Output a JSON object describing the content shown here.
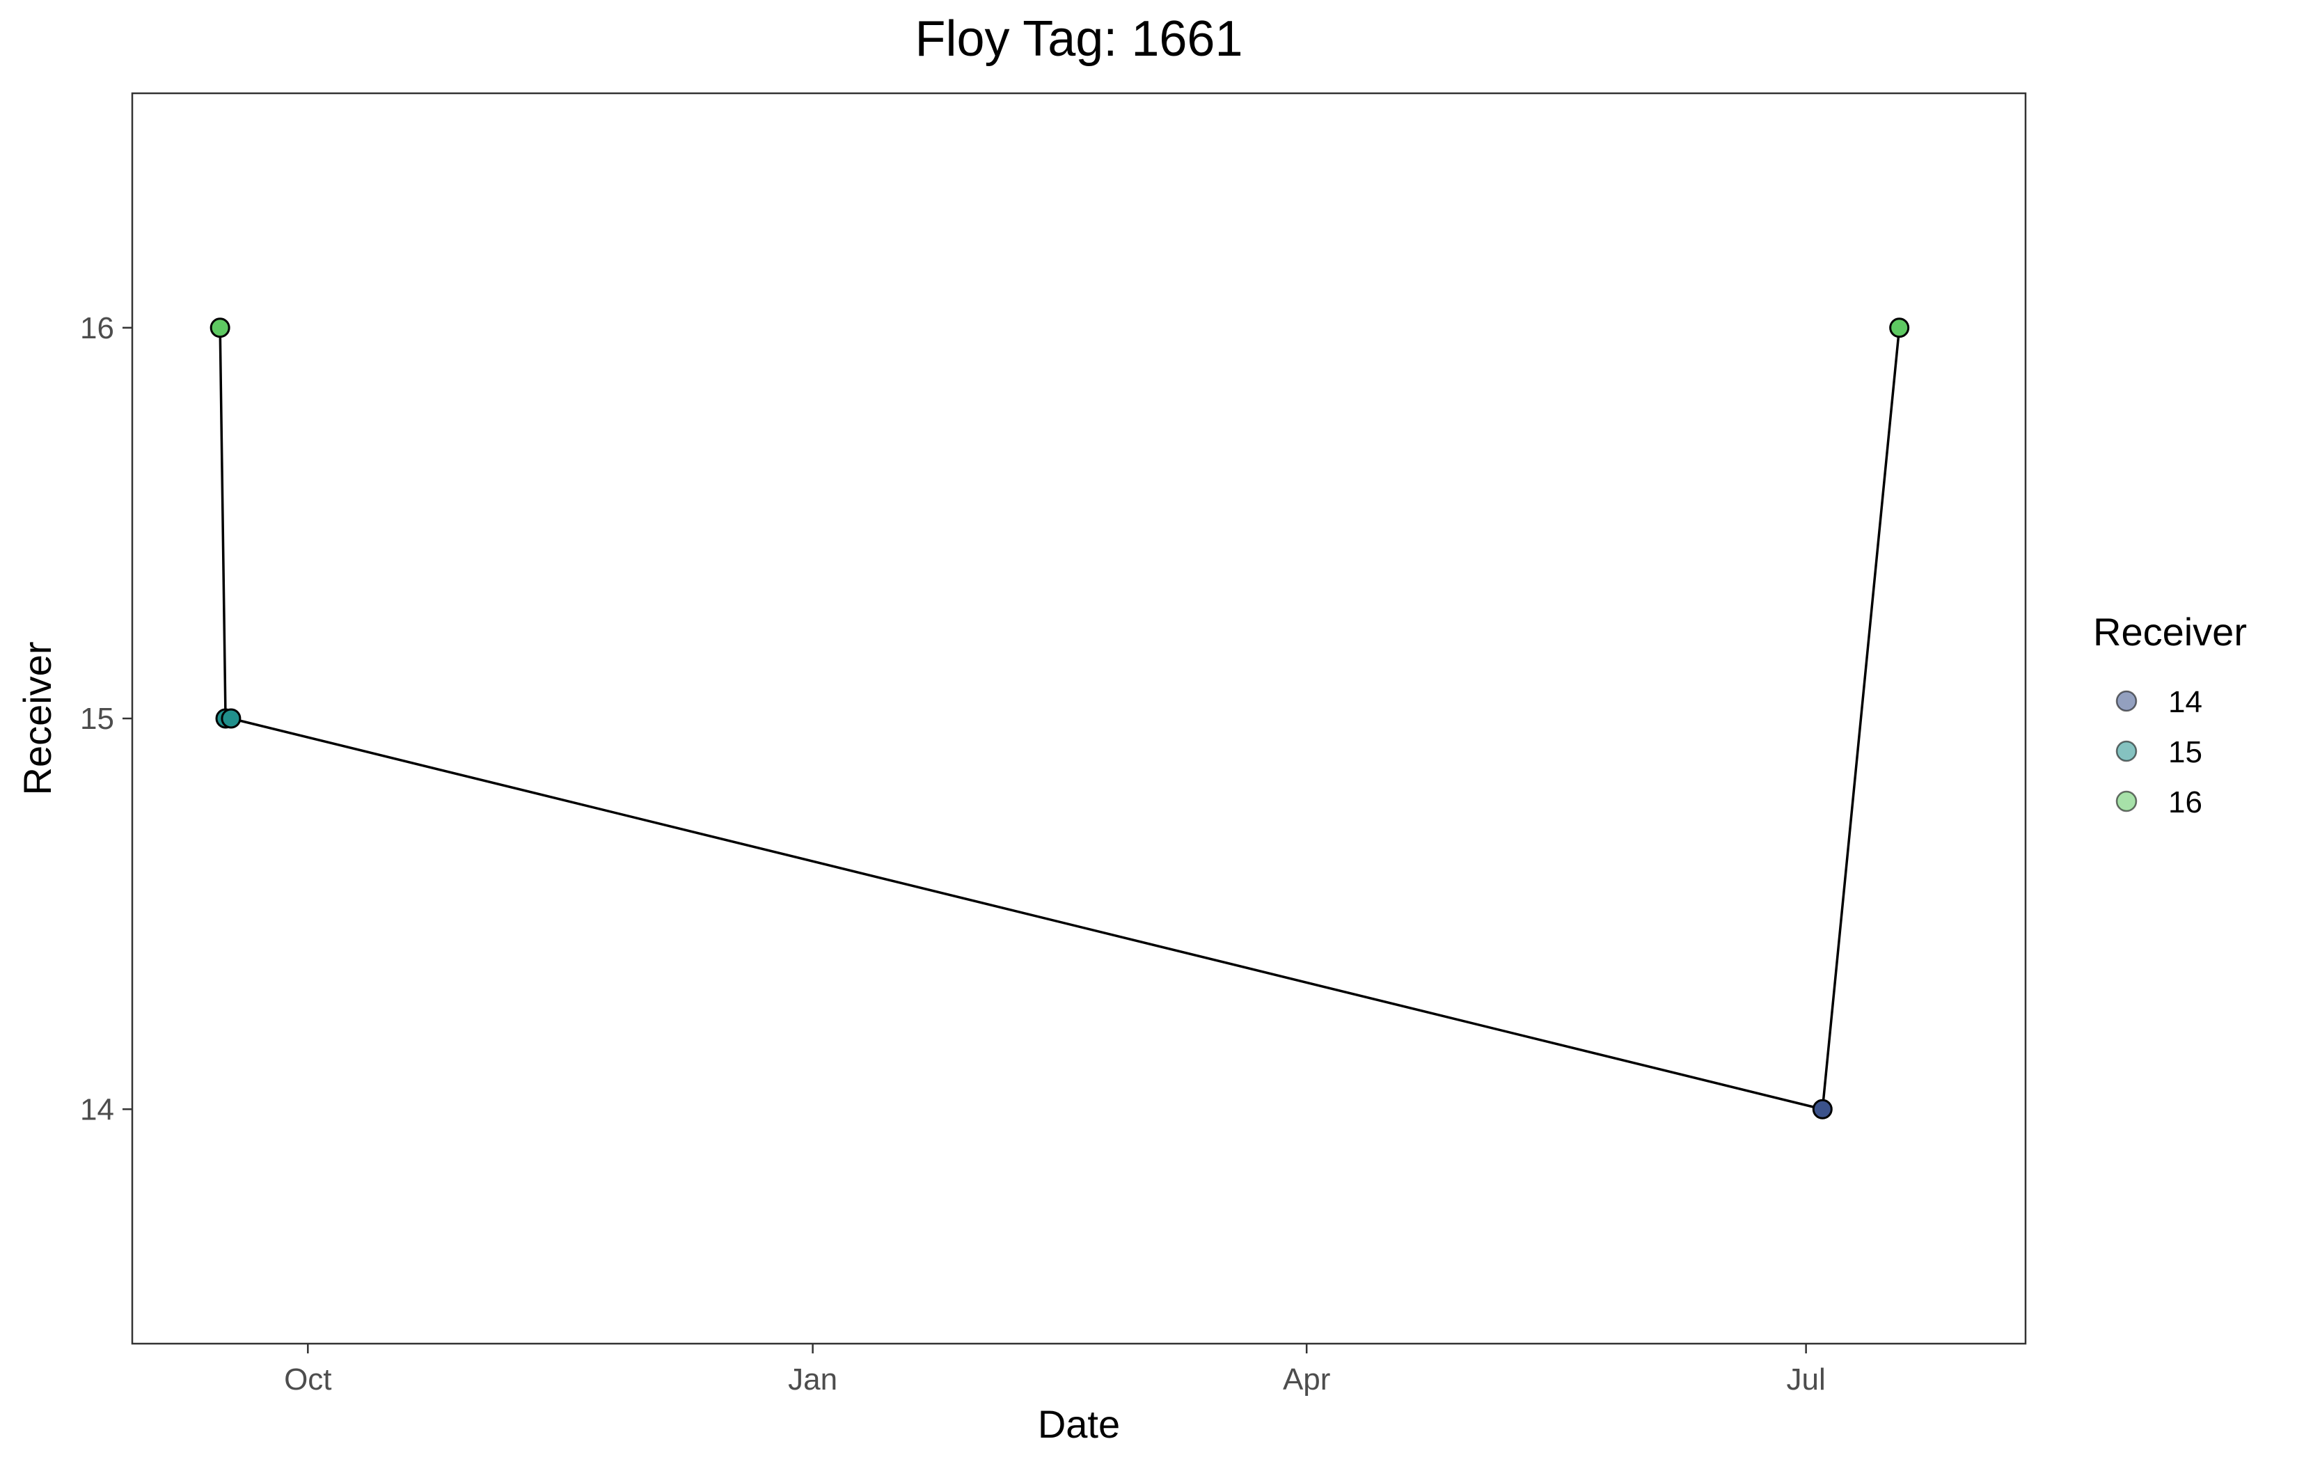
{
  "chart_data": {
    "type": "line",
    "title": "Floy Tag: 1661",
    "xlabel": "Date",
    "ylabel": "Receiver",
    "x_ticks": [
      {
        "label": "Oct",
        "date": "2020-10-01"
      },
      {
        "label": "Jan",
        "date": "2021-01-01"
      },
      {
        "label": "Apr",
        "date": "2021-04-01"
      },
      {
        "label": "Jul",
        "date": "2021-07-01"
      }
    ],
    "xlim": [
      "2020-08-30",
      "2021-08-10"
    ],
    "y_ticks": [
      14,
      15,
      16
    ],
    "ylim": [
      13.4,
      16.6
    ],
    "grid": false,
    "legend": {
      "title": "Receiver",
      "position": "right",
      "items": [
        {
          "label": "14",
          "color": "#3b528b"
        },
        {
          "label": "15",
          "color": "#21908c"
        },
        {
          "label": "16",
          "color": "#5ec962"
        }
      ]
    },
    "series": [
      {
        "points": [
          {
            "date": "2020-09-15",
            "receiver": 16
          },
          {
            "date": "2020-09-16",
            "receiver": 15
          },
          {
            "date": "2020-09-17",
            "receiver": 15
          },
          {
            "date": "2021-07-04",
            "receiver": 14
          },
          {
            "date": "2021-07-18",
            "receiver": 16
          }
        ]
      }
    ],
    "colors": {
      "line": "#000000",
      "14": "#3b528b",
      "15": "#21908c",
      "16": "#5ec962"
    }
  }
}
